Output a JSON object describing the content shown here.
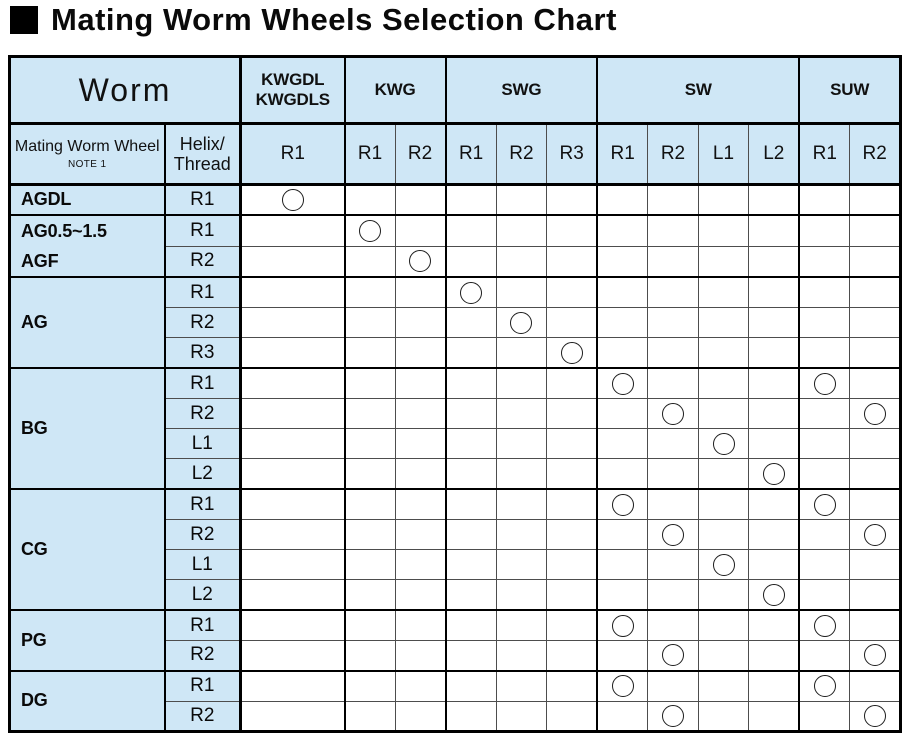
{
  "title": "Mating Worm Wheels Selection Chart",
  "colors": {
    "header_blue": "#cfe7f6",
    "grid_dark": "#000000",
    "grid_light": "#4d4d4d",
    "circle_stroke": "#1d1d1d"
  },
  "table": {
    "corner_label": "Worm",
    "row_header": {
      "title": "Mating Worm Wheel",
      "note": "NOTE 1"
    },
    "helix_header_lines": [
      "Helix/",
      "Thread"
    ],
    "worm_groups": [
      {
        "name_lines": [
          "KWGDL",
          "KWGDLS"
        ],
        "threads": [
          "R1"
        ]
      },
      {
        "name_lines": [
          "KWG"
        ],
        "threads": [
          "R1",
          "R2"
        ]
      },
      {
        "name_lines": [
          "SWG"
        ],
        "threads": [
          "R1",
          "R2",
          "R3"
        ]
      },
      {
        "name_lines": [
          "SW"
        ],
        "threads": [
          "R1",
          "R2",
          "L1",
          "L2"
        ]
      },
      {
        "name_lines": [
          "SUW"
        ],
        "threads": [
          "R1",
          "R2"
        ]
      }
    ],
    "column_keys": [
      "KWGDL/KWGDLS R1",
      "KWG R1",
      "KWG R2",
      "SWG R1",
      "SWG R2",
      "SWG R3",
      "SW R1",
      "SW R2",
      "SW L1",
      "SW L2",
      "SUW R1",
      "SUW R2"
    ],
    "mark_symbol": "circle",
    "wheel_groups": [
      {
        "name_lines": [
          "AGDL"
        ],
        "rows": [
          {
            "thread": "R1",
            "marks": [
              0
            ]
          }
        ]
      },
      {
        "name_lines": [
          "AG0.5~1.5",
          "AGF"
        ],
        "rows": [
          {
            "thread": "R1",
            "marks": [
              1
            ]
          },
          {
            "thread": "R2",
            "marks": [
              2
            ]
          }
        ]
      },
      {
        "name_lines": [
          "AG"
        ],
        "rows": [
          {
            "thread": "R1",
            "marks": [
              3
            ]
          },
          {
            "thread": "R2",
            "marks": [
              4
            ]
          },
          {
            "thread": "R3",
            "marks": [
              5
            ]
          }
        ]
      },
      {
        "name_lines": [
          "BG"
        ],
        "rows": [
          {
            "thread": "R1",
            "marks": [
              6,
              10
            ]
          },
          {
            "thread": "R2",
            "marks": [
              7,
              11
            ]
          },
          {
            "thread": "L1",
            "marks": [
              8
            ]
          },
          {
            "thread": "L2",
            "marks": [
              9
            ]
          }
        ]
      },
      {
        "name_lines": [
          "CG"
        ],
        "rows": [
          {
            "thread": "R1",
            "marks": [
              6,
              10
            ]
          },
          {
            "thread": "R2",
            "marks": [
              7,
              11
            ]
          },
          {
            "thread": "L1",
            "marks": [
              8
            ]
          },
          {
            "thread": "L2",
            "marks": [
              9
            ]
          }
        ]
      },
      {
        "name_lines": [
          "PG"
        ],
        "rows": [
          {
            "thread": "R1",
            "marks": [
              6,
              10
            ]
          },
          {
            "thread": "R2",
            "marks": [
              7,
              11
            ]
          }
        ]
      },
      {
        "name_lines": [
          "DG"
        ],
        "rows": [
          {
            "thread": "R1",
            "marks": [
              6,
              10
            ]
          },
          {
            "thread": "R2",
            "marks": [
              7,
              11
            ]
          }
        ]
      }
    ]
  }
}
